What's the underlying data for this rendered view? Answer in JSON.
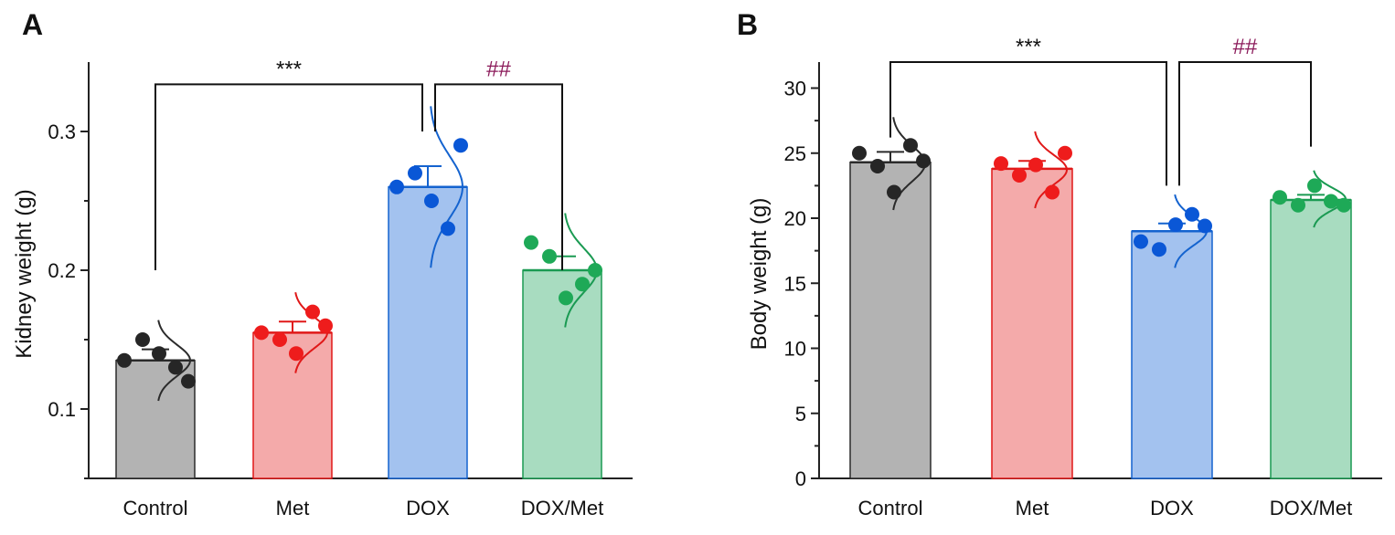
{
  "chart_data": [
    {
      "panel": "A",
      "type": "bar",
      "categories": [
        "Control",
        "Met",
        "DOX",
        "DOX/Met"
      ],
      "values": [
        0.135,
        0.155,
        0.26,
        0.2
      ],
      "error": [
        0.008,
        0.008,
        0.015,
        0.01
      ],
      "points": [
        [
          0.135,
          0.15,
          0.14,
          0.13,
          0.12
        ],
        [
          0.155,
          0.15,
          0.14,
          0.17,
          0.16
        ],
        [
          0.26,
          0.27,
          0.25,
          0.23,
          0.29
        ],
        [
          0.22,
          0.21,
          0.18,
          0.19,
          0.2
        ]
      ],
      "colors": {
        "fills": [
          "#b3b3b3",
          "#f4aaaa",
          "#a3c2ef",
          "#a8dcc0"
        ],
        "strokes": [
          "#2b2b2b",
          "#e01818",
          "#1463cf",
          "#1a9a52"
        ],
        "dots": [
          "#262626",
          "#ee1c1c",
          "#0a57d6",
          "#1ea957"
        ],
        "sig2": "#8b1a5a"
      },
      "ylabel": "Kidney weight (g)",
      "xlabel": "",
      "ylim": [
        0.05,
        0.35
      ],
      "ticks": [
        0.1,
        0.2,
        0.3
      ],
      "tick_labels": [
        "0.1",
        "0.2",
        "0.3"
      ],
      "minor_ticks": [
        0.05,
        0.15,
        0.25
      ],
      "significance": [
        {
          "from": 0,
          "to": 2,
          "label": "***",
          "level": 0.334,
          "lows": [
            0.2,
            0.3
          ]
        },
        {
          "from": 2,
          "to": 3,
          "label": "##",
          "level": 0.334,
          "lows": [
            0.3,
            0.2
          ]
        }
      ]
    },
    {
      "panel": "B",
      "type": "bar",
      "categories": [
        "Control",
        "Met",
        "DOX",
        "DOX/Met"
      ],
      "values": [
        24.3,
        23.8,
        19.0,
        21.4
      ],
      "error": [
        0.8,
        0.6,
        0.6,
        0.4
      ],
      "points": [
        [
          25.0,
          24.0,
          22.0,
          25.6,
          24.4
        ],
        [
          24.2,
          23.3,
          24.1,
          22.0,
          25.0
        ],
        [
          18.2,
          17.6,
          19.5,
          20.3,
          19.4
        ],
        [
          21.6,
          21.0,
          22.5,
          21.3,
          21.0
        ]
      ],
      "colors": {
        "fills": [
          "#b3b3b3",
          "#f4aaaa",
          "#a3c2ef",
          "#a8dcc0"
        ],
        "strokes": [
          "#2b2b2b",
          "#e01818",
          "#1463cf",
          "#1a9a52"
        ],
        "dots": [
          "#262626",
          "#ee1c1c",
          "#0a57d6",
          "#1ea957"
        ],
        "sig2": "#8b1a5a"
      },
      "ylabel": "Body weight (g)",
      "xlabel": "",
      "ylim": [
        0,
        32
      ],
      "ticks": [
        0,
        5,
        10,
        15,
        20,
        25,
        30
      ],
      "tick_labels": [
        "0",
        "5",
        "10",
        "15",
        "20",
        "25",
        "30"
      ],
      "minor_ticks": [
        2.5,
        7.5,
        12.5,
        17.5,
        22.5,
        27.5
      ],
      "significance": [
        {
          "from": 0,
          "to": 2,
          "label": "***",
          "level": 32.0,
          "lows": [
            26.2,
            22.5
          ]
        },
        {
          "from": 2,
          "to": 3,
          "label": "##",
          "level": 32.0,
          "lows": [
            22.5,
            25.5
          ]
        }
      ]
    }
  ]
}
